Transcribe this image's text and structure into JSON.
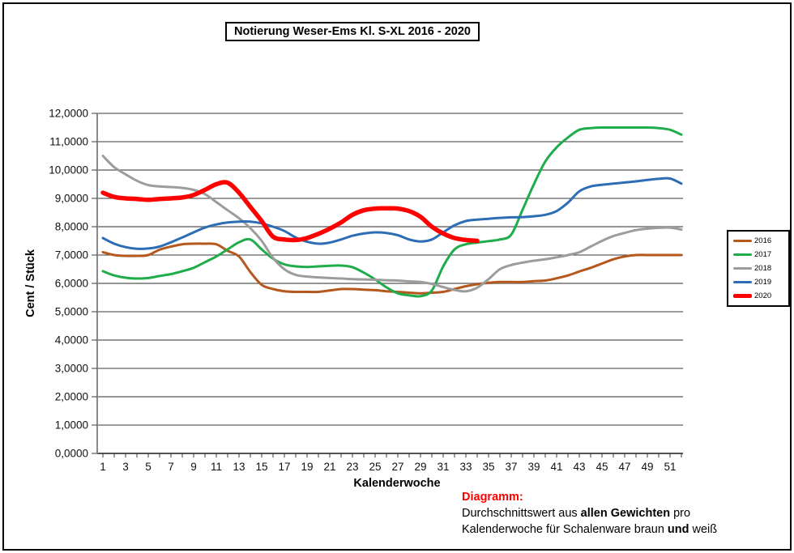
{
  "title": "Notierung Weser-Ems Kl. S-XL 2016 - 2020",
  "note": {
    "heading": "Diagramm:",
    "heading_color": "#ff0000",
    "line1_pre": "Durchschnittswert aus ",
    "line1_bold": "allen Gewichten",
    "line1_post": " pro",
    "line2_pre": "Kalenderwoche für Schalenware braun ",
    "line2_bold": "und",
    "line2_post": " weiß"
  },
  "chart_data": {
    "type": "line",
    "title": "Notierung Weser-Ems Kl. S-XL 2016 - 2020",
    "xlabel": "Kalenderwoche",
    "ylabel": "Cent / Stück",
    "ylim": [
      0,
      12
    ],
    "y_tick_labels": [
      "0,0000",
      "1,0000",
      "2,0000",
      "3,0000",
      "4,0000",
      "5,0000",
      "6,0000",
      "7,0000",
      "8,0000",
      "9,0000",
      "10,0000",
      "11,0000",
      "12,0000"
    ],
    "x_tick_label_values": [
      1,
      3,
      5,
      7,
      9,
      11,
      13,
      15,
      17,
      19,
      21,
      23,
      25,
      27,
      29,
      31,
      33,
      35,
      37,
      39,
      41,
      43,
      45,
      47,
      49,
      51
    ],
    "weeks_total": 52,
    "grid": true,
    "legend_position": "right",
    "x": [
      1,
      2,
      3,
      4,
      5,
      6,
      7,
      8,
      9,
      10,
      11,
      12,
      13,
      14,
      15,
      16,
      17,
      18,
      19,
      20,
      21,
      22,
      23,
      24,
      25,
      26,
      27,
      28,
      29,
      30,
      31,
      32,
      33,
      34,
      35,
      36,
      37,
      38,
      39,
      40,
      41,
      42,
      43,
      44,
      45,
      46,
      47,
      48,
      49,
      50,
      51,
      52
    ],
    "series": [
      {
        "name": "2016",
        "color": "#B4581D",
        "width": 3,
        "values": [
          7.1,
          7.0,
          6.97,
          6.97,
          7.0,
          7.19,
          7.3,
          7.38,
          7.4,
          7.4,
          7.38,
          7.15,
          6.95,
          6.4,
          5.95,
          5.8,
          5.72,
          5.7,
          5.7,
          5.7,
          5.75,
          5.8,
          5.8,
          5.78,
          5.76,
          5.72,
          5.7,
          5.67,
          5.65,
          5.67,
          5.7,
          5.8,
          5.9,
          5.97,
          6.02,
          6.05,
          6.05,
          6.05,
          6.08,
          6.1,
          6.18,
          6.28,
          6.42,
          6.55,
          6.7,
          6.85,
          6.95,
          7.0,
          7.0,
          7.0,
          7.0,
          7.0
        ]
      },
      {
        "name": "2017",
        "color": "#1FAC4B",
        "width": 3,
        "values": [
          6.43,
          6.28,
          6.2,
          6.17,
          6.19,
          6.26,
          6.33,
          6.43,
          6.55,
          6.75,
          6.95,
          7.2,
          7.45,
          7.55,
          7.2,
          6.87,
          6.67,
          6.6,
          6.58,
          6.6,
          6.62,
          6.63,
          6.57,
          6.38,
          6.14,
          5.86,
          5.65,
          5.58,
          5.55,
          5.75,
          6.6,
          7.2,
          7.38,
          7.44,
          7.49,
          7.55,
          7.72,
          8.6,
          9.5,
          10.3,
          10.8,
          11.15,
          11.42,
          11.48,
          11.5,
          11.5,
          11.5,
          11.5,
          11.5,
          11.48,
          11.42,
          11.25
        ]
      },
      {
        "name": "2018",
        "color": "#9C9C9C",
        "width": 3,
        "values": [
          10.5,
          10.1,
          9.85,
          9.62,
          9.47,
          9.42,
          9.4,
          9.37,
          9.3,
          9.15,
          8.87,
          8.58,
          8.3,
          7.95,
          7.5,
          6.9,
          6.5,
          6.3,
          6.24,
          6.21,
          6.19,
          6.17,
          6.15,
          6.14,
          6.13,
          6.11,
          6.1,
          6.07,
          6.05,
          5.98,
          5.87,
          5.77,
          5.72,
          5.85,
          6.15,
          6.5,
          6.65,
          6.73,
          6.8,
          6.85,
          6.92,
          7.0,
          7.1,
          7.3,
          7.5,
          7.67,
          7.78,
          7.88,
          7.93,
          7.96,
          7.97,
          7.9
        ]
      },
      {
        "name": "2019",
        "color": "#2D6DB5",
        "width": 3,
        "values": [
          7.6,
          7.4,
          7.28,
          7.22,
          7.23,
          7.3,
          7.45,
          7.62,
          7.8,
          7.97,
          8.08,
          8.15,
          8.18,
          8.18,
          8.12,
          8.0,
          7.85,
          7.62,
          7.47,
          7.4,
          7.44,
          7.55,
          7.68,
          7.76,
          7.8,
          7.78,
          7.7,
          7.55,
          7.48,
          7.55,
          7.8,
          8.05,
          8.2,
          8.25,
          8.28,
          8.31,
          8.33,
          8.34,
          8.37,
          8.42,
          8.55,
          8.85,
          9.25,
          9.42,
          9.48,
          9.52,
          9.56,
          9.6,
          9.65,
          9.69,
          9.7,
          9.52
        ]
      },
      {
        "name": "2020",
        "color": "#FE0000",
        "width": 5.5,
        "values": [
          9.2,
          9.05,
          9.0,
          8.98,
          8.95,
          8.98,
          9.0,
          9.03,
          9.12,
          9.3,
          9.5,
          9.55,
          9.2,
          8.7,
          8.2,
          7.65,
          7.55,
          7.53,
          7.6,
          7.75,
          7.93,
          8.15,
          8.42,
          8.58,
          8.64,
          8.65,
          8.64,
          8.55,
          8.35,
          8.0,
          7.76,
          7.6,
          7.53,
          7.5
        ]
      }
    ]
  }
}
